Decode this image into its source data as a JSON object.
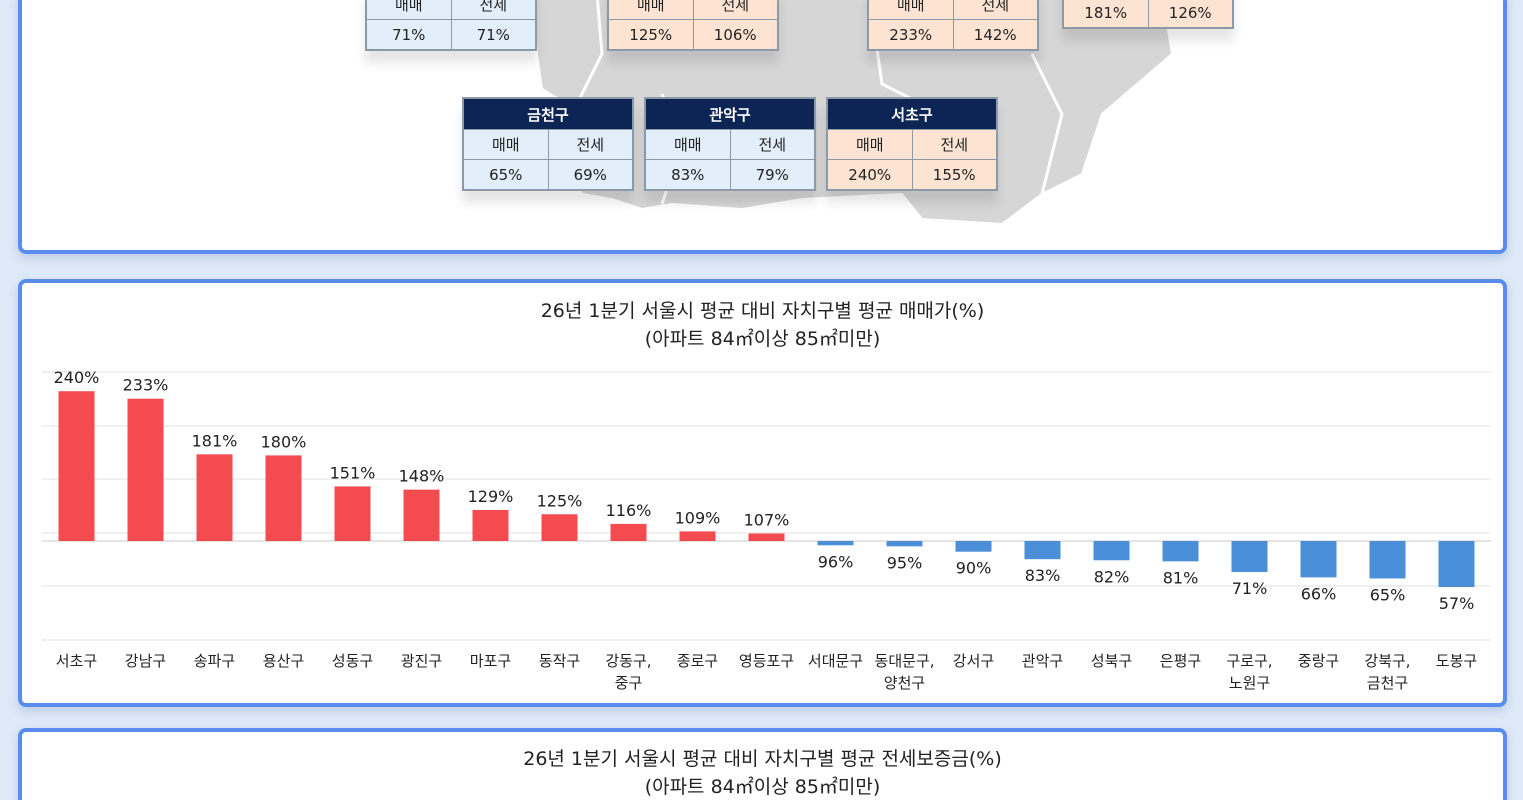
{
  "tables": [
    {
      "district": "",
      "col1": "매매",
      "col2": "전세",
      "sale": "71%",
      "jeonse": "71%",
      "tone": "blue"
    },
    {
      "district": "",
      "col1": "매매",
      "col2": "전세",
      "sale": "125%",
      "jeonse": "106%",
      "tone": "peach"
    },
    {
      "district": "",
      "col1": "매매",
      "col2": "전세",
      "sale": "233%",
      "jeonse": "142%",
      "tone": "peach"
    },
    {
      "district": "",
      "col1": "매매",
      "col2": "전세",
      "sale": "181%",
      "jeonse": "126%",
      "tone": "peach"
    },
    {
      "district": "금천구",
      "col1": "매매",
      "col2": "전세",
      "sale": "65%",
      "jeonse": "69%",
      "tone": "blue"
    },
    {
      "district": "관악구",
      "col1": "매매",
      "col2": "전세",
      "sale": "83%",
      "jeonse": "79%",
      "tone": "blue"
    },
    {
      "district": "서초구",
      "col1": "매매",
      "col2": "전세",
      "sale": "240%",
      "jeonse": "155%",
      "tone": "peach"
    }
  ],
  "chart_data": {
    "type": "bar",
    "title": "26년 1분기 서울시 평균 대비 자치구별 평균 매매가(%)",
    "subtitle": "(아파트 84㎡이상 85㎡미만)",
    "baseline": 100,
    "categories": [
      [
        "서초구"
      ],
      [
        "강남구"
      ],
      [
        "송파구"
      ],
      [
        "용산구"
      ],
      [
        "성동구"
      ],
      [
        "광진구"
      ],
      [
        "마포구"
      ],
      [
        "동작구"
      ],
      [
        "강동구,",
        "중구"
      ],
      [
        "종로구"
      ],
      [
        "영등포구"
      ],
      [
        "서대문구"
      ],
      [
        "동대문구,",
        "양천구"
      ],
      [
        "강서구"
      ],
      [
        "관악구"
      ],
      [
        "성북구"
      ],
      [
        "은평구"
      ],
      [
        "구로구,",
        "노원구"
      ],
      [
        "중랑구"
      ],
      [
        "강북구,",
        "금천구"
      ],
      [
        "도봉구"
      ]
    ],
    "values": [
      240,
      233,
      181,
      180,
      151,
      148,
      129,
      125,
      116,
      109,
      107,
      96,
      95,
      90,
      83,
      82,
      81,
      71,
      66,
      65,
      57
    ],
    "labels": [
      "240%",
      "233%",
      "181%",
      "180%",
      "151%",
      "148%",
      "129%",
      "125%",
      "116%",
      "109%",
      "107%",
      "96%",
      "95%",
      "90%",
      "83%",
      "82%",
      "81%",
      "71%",
      "66%",
      "65%",
      "57%"
    ],
    "colors": {
      "above": "#f44b50",
      "below": "#4a8fd8"
    },
    "grid": true
  },
  "bottom_chart": {
    "title": "26년 1분기 서울시 평균 대비 자치구별 평균 전세보증금(%)",
    "subtitle": "(아파트 84㎡이상 85㎡미만)"
  }
}
